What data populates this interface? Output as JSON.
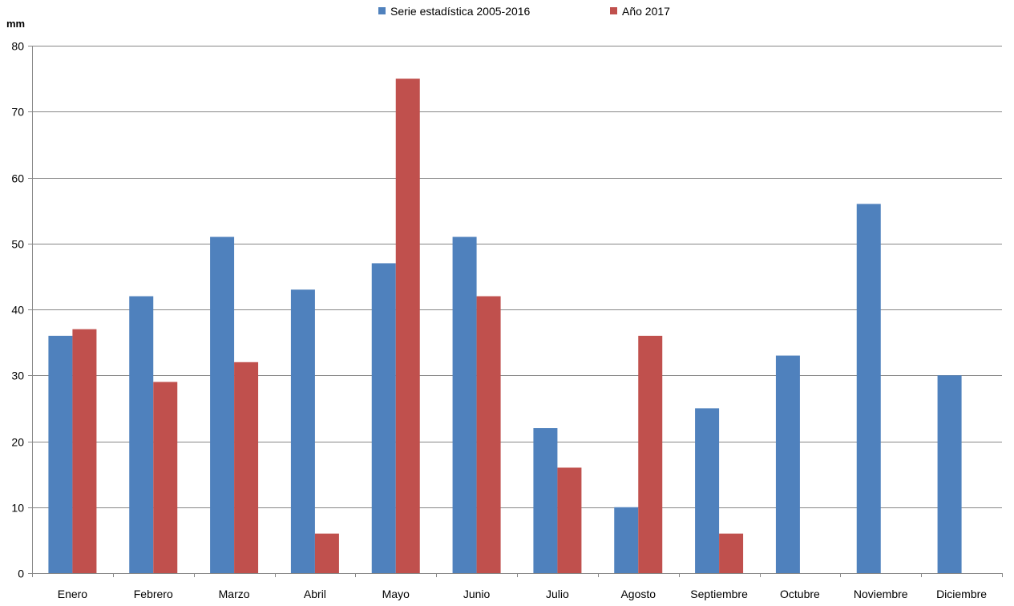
{
  "chart_data": {
    "type": "bar",
    "title": "",
    "xlabel": "",
    "ylabel": "mm",
    "ylim": [
      0,
      80
    ],
    "yticks": [
      0,
      10,
      20,
      30,
      40,
      50,
      60,
      70,
      80
    ],
    "grid": true,
    "legend_position": "top-center",
    "categories": [
      "Enero",
      "Febrero",
      "Marzo",
      "Abril",
      "Mayo",
      "Junio",
      "Julio",
      "Agosto",
      "Septiembre",
      "Octubre",
      "Noviembre",
      "Diciembre"
    ],
    "series": [
      {
        "name": "Serie estadística 2005-2016",
        "color": "#4F81BD",
        "values": [
          36,
          42,
          51,
          43,
          47,
          51,
          22,
          10,
          25,
          33,
          56,
          30
        ]
      },
      {
        "name": "Año 2017",
        "color": "#C0504D",
        "values": [
          37,
          29,
          32,
          6,
          75,
          42,
          16,
          36,
          6,
          null,
          null,
          null
        ]
      }
    ]
  }
}
